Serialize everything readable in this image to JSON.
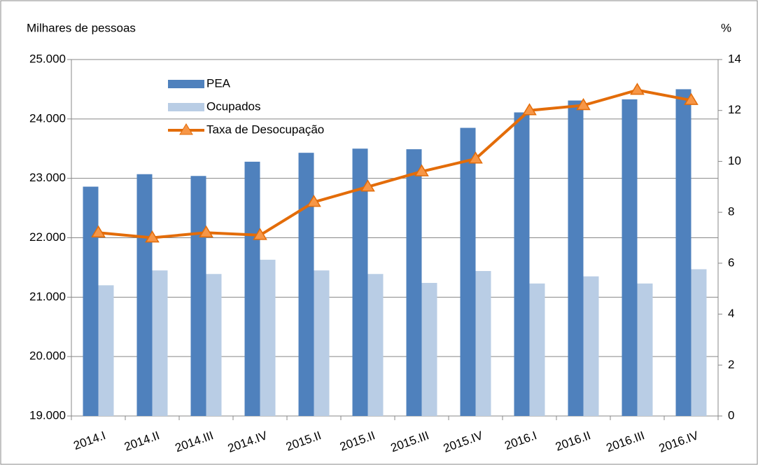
{
  "chart_data": {
    "type": "bar",
    "y_label": "Milhares de pessoas",
    "y2_label": "%",
    "categories": [
      "2014.I",
      "2014.II",
      "2014.III",
      "2014.IV",
      "2015.II",
      "2015.II",
      "2015.III",
      "2015.IV",
      "2016.I",
      "2016.II",
      "2016.III",
      "2016.IV"
    ],
    "series": [
      {
        "name": "PEA",
        "color": "#4f81bd",
        "values": [
          22860,
          23070,
          23040,
          23280,
          23430,
          23500,
          23490,
          23850,
          24110,
          24310,
          24330,
          24500
        ]
      },
      {
        "name": "Ocupados",
        "color": "#b9cde5",
        "values": [
          21200,
          21450,
          21390,
          21630,
          21450,
          21390,
          21240,
          21440,
          21230,
          21350,
          21230,
          21470
        ]
      },
      {
        "name": "Taxa de Desocupação",
        "type": "line",
        "axis": "y2",
        "color": "#e36c09",
        "values": [
          7.2,
          7.0,
          7.2,
          7.1,
          8.4,
          9.0,
          9.6,
          10.1,
          12.0,
          12.2,
          12.8,
          12.4
        ]
      }
    ],
    "ylim": [
      19000,
      25000
    ],
    "yticks": [
      {
        "value": 19000,
        "label": "19.000"
      },
      {
        "value": 20000,
        "label": "20.000"
      },
      {
        "value": 21000,
        "label": "21.000"
      },
      {
        "value": 22000,
        "label": "22.000"
      },
      {
        "value": 23000,
        "label": "23.000"
      },
      {
        "value": 24000,
        "label": "24.000"
      },
      {
        "value": 25000,
        "label": "25.000"
      }
    ],
    "y2lim": [
      0,
      14
    ],
    "y2ticks": [
      0,
      2,
      4,
      6,
      8,
      10,
      12,
      14
    ],
    "grid": true
  }
}
